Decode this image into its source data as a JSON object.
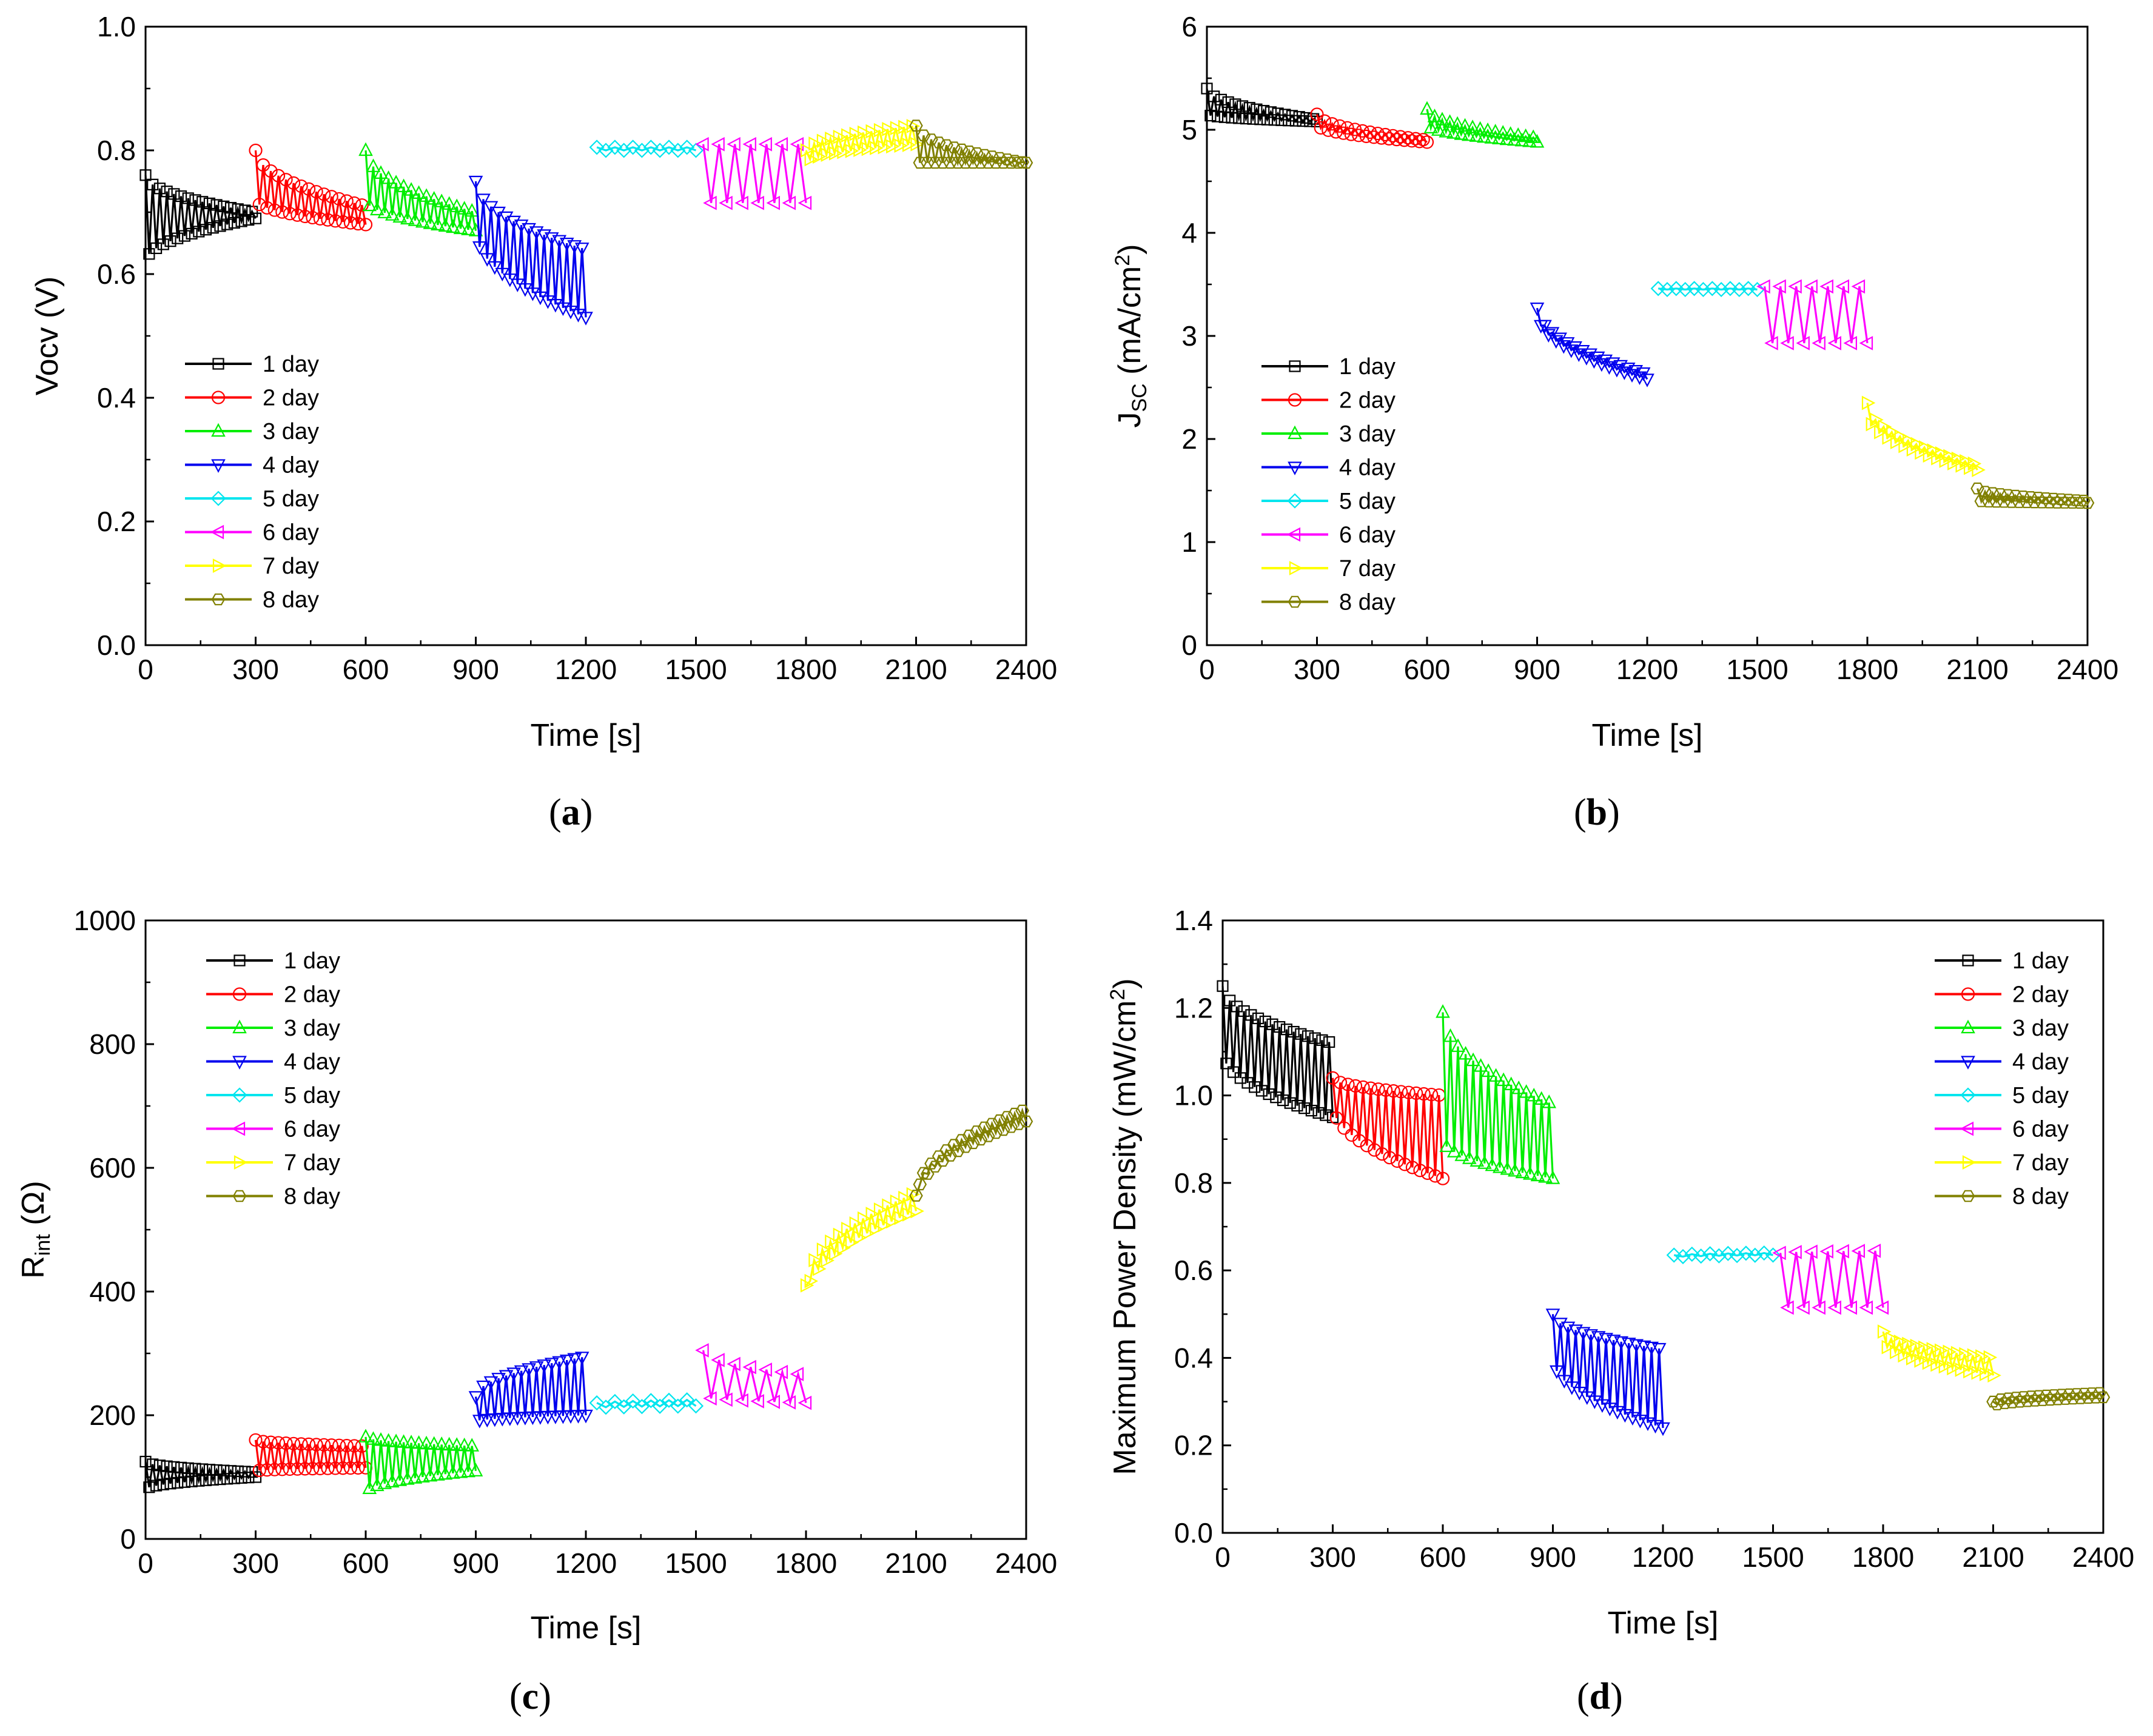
{
  "figure": {
    "series_labels": [
      "1 day",
      "2 day",
      "3 day",
      "4 day",
      "5 day",
      "6 day",
      "7 day",
      "8 day"
    ],
    "series_colors": [
      "#000000",
      "#ff0000",
      "#00ee00",
      "#0000ee",
      "#00e5ee",
      "#ff00ff",
      "#ffff00",
      "#808000"
    ],
    "series_markers": [
      "square",
      "circle",
      "triangle-up",
      "triangle-down",
      "diamond",
      "triangle-left",
      "triangle-right",
      "hexagon"
    ]
  },
  "chart_data": [
    {
      "id": "a",
      "type": "line",
      "caption_letter": "a",
      "xlabel": "Time [s]",
      "ylabel": "Vocv (V)",
      "xlim": [
        0,
        2400
      ],
      "ylim": [
        0,
        1.0
      ],
      "xticks": [
        "0",
        "300",
        "600",
        "900",
        "1200",
        "1500",
        "1800",
        "2100",
        "2400"
      ],
      "yticks": [
        "0.0",
        "0.2",
        "0.4",
        "0.6",
        "0.8",
        "1.0"
      ],
      "legend_position": "left",
      "series": [
        {
          "name": "1 day",
          "kind": "zigzag",
          "x0": 0,
          "x1": 300,
          "n": 32,
          "upper": [
            0.76,
            0.7
          ],
          "lower": [
            0.62,
            0.69
          ]
        },
        {
          "name": "2 day",
          "kind": "zigzag",
          "x0": 300,
          "x1": 600,
          "n": 30,
          "upper": [
            0.8,
            0.71
          ],
          "lower": [
            0.72,
            0.68
          ]
        },
        {
          "name": "3 day",
          "kind": "zigzag",
          "x0": 600,
          "x1": 900,
          "n": 30,
          "upper": [
            0.8,
            0.7
          ],
          "lower": [
            0.72,
            0.67
          ]
        },
        {
          "name": "4 day",
          "kind": "zigzag",
          "x0": 900,
          "x1": 1200,
          "n": 30,
          "upper": [
            0.75,
            0.64
          ],
          "lower": [
            0.67,
            0.53
          ]
        },
        {
          "name": "5 day",
          "kind": "zigzag",
          "x0": 1230,
          "x1": 1500,
          "n": 12,
          "upper": [
            0.805,
            0.805
          ],
          "lower": [
            0.8,
            0.8
          ]
        },
        {
          "name": "6 day",
          "kind": "zigzag",
          "x0": 1520,
          "x1": 1800,
          "n": 14,
          "upper": [
            0.81,
            0.81
          ],
          "lower": [
            0.715,
            0.715
          ]
        },
        {
          "name": "7 day",
          "kind": "zigzag",
          "x0": 1800,
          "x1": 2100,
          "n": 28,
          "upper": [
            0.8,
            0.84
          ],
          "lower": [
            0.78,
            0.81
          ]
        },
        {
          "name": "8 day",
          "kind": "zigzag",
          "x0": 2100,
          "x1": 2400,
          "n": 30,
          "upper": [
            0.84,
            0.78
          ],
          "lower": [
            0.78,
            0.78
          ]
        }
      ]
    },
    {
      "id": "b",
      "type": "line",
      "caption_letter": "b",
      "xlabel": "Time [s]",
      "ylabel_main": "J",
      "ylabel_sub": "SC",
      "ylabel_rest": " (mA/cm",
      "ylabel_sup": "2",
      "ylabel_close": ")",
      "xlim": [
        0,
        2400
      ],
      "ylim": [
        0,
        6
      ],
      "xticks": [
        "0",
        "300",
        "600",
        "900",
        "1200",
        "1500",
        "1800",
        "2100",
        "2400"
      ],
      "yticks": [
        "0",
        "1",
        "2",
        "3",
        "4",
        "5",
        "6"
      ],
      "legend_position": "left",
      "series": [
        {
          "name": "1 day",
          "kind": "zigzag",
          "x0": 0,
          "x1": 300,
          "n": 32,
          "upper": [
            5.4,
            5.1
          ],
          "lower": [
            5.15,
            5.08
          ]
        },
        {
          "name": "2 day",
          "kind": "zigzag",
          "x0": 300,
          "x1": 600,
          "n": 30,
          "upper": [
            5.15,
            4.9
          ],
          "lower": [
            5.05,
            4.88
          ]
        },
        {
          "name": "3 day",
          "kind": "zigzag",
          "x0": 600,
          "x1": 900,
          "n": 30,
          "upper": [
            5.2,
            4.92
          ],
          "lower": [
            5.05,
            4.88
          ]
        },
        {
          "name": "4 day",
          "kind": "zigzag",
          "x0": 900,
          "x1": 1200,
          "n": 30,
          "upper": [
            3.27,
            2.63
          ],
          "lower": [
            3.22,
            2.58
          ]
        },
        {
          "name": "5 day",
          "kind": "zigzag",
          "x0": 1230,
          "x1": 1500,
          "n": 12,
          "upper": [
            3.46,
            3.46
          ],
          "lower": [
            3.45,
            3.45
          ]
        },
        {
          "name": "6 day",
          "kind": "zigzag",
          "x0": 1520,
          "x1": 1800,
          "n": 14,
          "upper": [
            3.48,
            3.48
          ],
          "lower": [
            2.93,
            2.93
          ]
        },
        {
          "name": "7 day",
          "kind": "zigzag",
          "x0": 1800,
          "x1": 2100,
          "n": 28,
          "upper": [
            2.35,
            1.75
          ],
          "lower": [
            2.25,
            1.7
          ]
        },
        {
          "name": "8 day",
          "kind": "zigzag",
          "x0": 2100,
          "x1": 2400,
          "n": 30,
          "upper": [
            1.52,
            1.4
          ],
          "lower": [
            1.4,
            1.38
          ]
        }
      ]
    },
    {
      "id": "c",
      "type": "line",
      "caption_letter": "c",
      "xlabel": "Time [s]",
      "ylabel_main": "R",
      "ylabel_sub": "int",
      "ylabel_rest": " (Ω)",
      "xlim": [
        0,
        2400
      ],
      "ylim": [
        0,
        1000
      ],
      "xticks": [
        "0",
        "300",
        "600",
        "900",
        "1200",
        "1500",
        "1800",
        "2100",
        "2400"
      ],
      "yticks": [
        "0",
        "200",
        "400",
        "600",
        "800",
        "1000"
      ],
      "legend_position": "top-left",
      "series": [
        {
          "name": "1 day",
          "kind": "zigzag",
          "x0": 0,
          "x1": 300,
          "n": 32,
          "upper": [
            125,
            108
          ],
          "lower": [
            80,
            100
          ]
        },
        {
          "name": "2 day",
          "kind": "zigzag",
          "x0": 300,
          "x1": 600,
          "n": 30,
          "upper": [
            160,
            150
          ],
          "lower": [
            110,
            115
          ]
        },
        {
          "name": "3 day",
          "kind": "zigzag",
          "x0": 600,
          "x1": 900,
          "n": 30,
          "upper": [
            165,
            150
          ],
          "lower": [
            75,
            110
          ]
        },
        {
          "name": "4 day",
          "kind": "zigzag",
          "x0": 900,
          "x1": 1200,
          "n": 30,
          "upper": [
            230,
            295
          ],
          "lower": [
            190,
            200
          ]
        },
        {
          "name": "5 day",
          "kind": "zigzag",
          "x0": 1230,
          "x1": 1500,
          "n": 12,
          "upper": [
            220,
            225
          ],
          "lower": [
            212,
            215
          ]
        },
        {
          "name": "6 day",
          "kind": "zigzag",
          "x0": 1520,
          "x1": 1800,
          "n": 14,
          "upper": [
            305,
            265
          ],
          "lower": [
            230,
            220
          ]
        },
        {
          "name": "7 day",
          "kind": "zigzag",
          "x0": 1800,
          "x1": 2100,
          "n": 28,
          "upper": [
            410,
            560
          ],
          "lower": [
            390,
            530
          ]
        },
        {
          "name": "8 day",
          "kind": "zigzag",
          "x0": 2100,
          "x1": 2400,
          "n": 30,
          "upper": [
            555,
            695
          ],
          "lower": [
            550,
            675
          ]
        }
      ]
    },
    {
      "id": "d",
      "type": "line",
      "caption_letter": "d",
      "xlabel": "Time [s]",
      "ylabel_main": "Maximum Power Density (mW/cm",
      "ylabel_sup": "2",
      "ylabel_close": ")",
      "xlim": [
        0,
        2400
      ],
      "ylim": [
        0,
        1.4
      ],
      "xticks": [
        "0",
        "300",
        "600",
        "900",
        "1200",
        "1500",
        "1800",
        "2100",
        "2400"
      ],
      "yticks": [
        "0.0",
        "0.2",
        "0.4",
        "0.6",
        "0.8",
        "1.0",
        "1.2",
        "1.4"
      ],
      "legend_position": "top-right",
      "series": [
        {
          "name": "1 day",
          "kind": "zigzag",
          "x0": 0,
          "x1": 300,
          "n": 32,
          "upper": [
            1.25,
            1.12
          ],
          "lower": [
            1.1,
            0.95
          ]
        },
        {
          "name": "2 day",
          "kind": "zigzag",
          "x0": 300,
          "x1": 600,
          "n": 30,
          "upper": [
            1.04,
            1.0
          ],
          "lower": [
            0.98,
            0.81
          ]
        },
        {
          "name": "3 day",
          "kind": "zigzag",
          "x0": 600,
          "x1": 900,
          "n": 30,
          "upper": [
            1.19,
            0.98
          ],
          "lower": [
            0.9,
            0.81
          ]
        },
        {
          "name": "4 day",
          "kind": "zigzag",
          "x0": 900,
          "x1": 1200,
          "n": 30,
          "upper": [
            0.5,
            0.42
          ],
          "lower": [
            0.4,
            0.24
          ]
        },
        {
          "name": "5 day",
          "kind": "zigzag",
          "x0": 1230,
          "x1": 1500,
          "n": 12,
          "upper": [
            0.635,
            0.64
          ],
          "lower": [
            0.63,
            0.635
          ]
        },
        {
          "name": "6 day",
          "kind": "zigzag",
          "x0": 1520,
          "x1": 1800,
          "n": 14,
          "upper": [
            0.64,
            0.645
          ],
          "lower": [
            0.515,
            0.515
          ]
        },
        {
          "name": "7 day",
          "kind": "zigzag",
          "x0": 1800,
          "x1": 2100,
          "n": 28,
          "upper": [
            0.46,
            0.4
          ],
          "lower": [
            0.44,
            0.36
          ]
        },
        {
          "name": "8 day",
          "kind": "zigzag",
          "x0": 2100,
          "x1": 2400,
          "n": 30,
          "upper": [
            0.3,
            0.32
          ],
          "lower": [
            0.29,
            0.31
          ]
        }
      ]
    }
  ]
}
